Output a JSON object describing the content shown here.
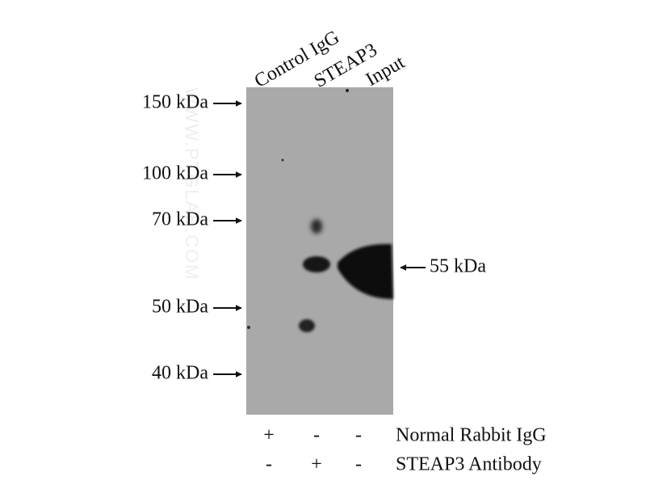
{
  "lanes": [
    "Control IgG",
    "STEAP3",
    "Input"
  ],
  "markers": [
    "150 kDa",
    "100 kDa",
    "70 kDa",
    "50 kDa",
    "40 kDa"
  ],
  "band_label": "55 kDa",
  "conditions": [
    {
      "label": "Normal Rabbit IgG",
      "signs": [
        "+",
        "-",
        "-"
      ]
    },
    {
      "label": "STEAP3 Antibody",
      "signs": [
        "-",
        "+",
        "-"
      ]
    }
  ],
  "watermark": "WWW.PTGLAB.COM"
}
